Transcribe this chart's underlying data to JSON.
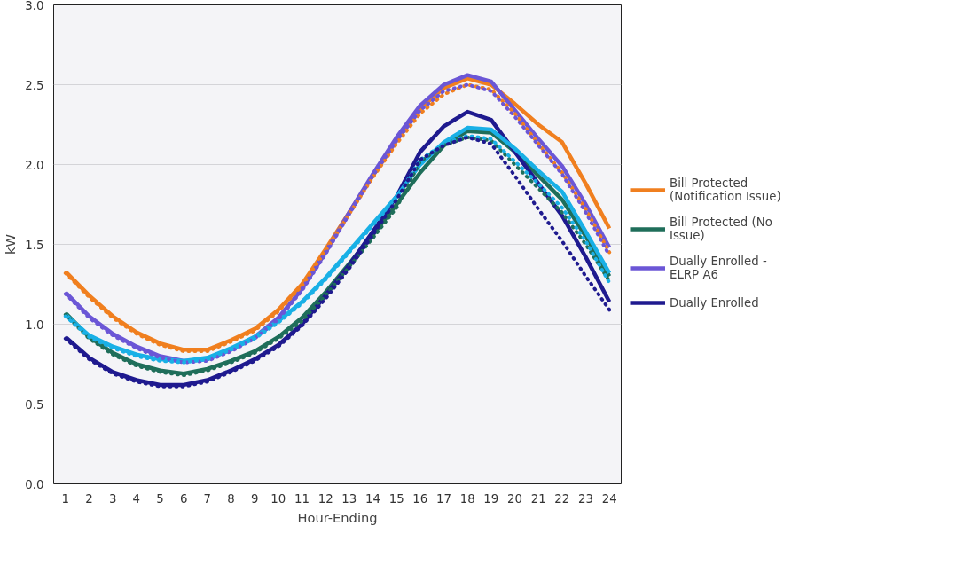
{
  "chart_data": {
    "type": "line",
    "xlabel": "Hour-Ending",
    "ylabel": "kW",
    "x": [
      1,
      2,
      3,
      4,
      5,
      6,
      7,
      8,
      9,
      10,
      11,
      12,
      13,
      14,
      15,
      16,
      17,
      18,
      19,
      20,
      21,
      22,
      23,
      24
    ],
    "xlim": [
      0.5,
      24.5
    ],
    "xticks": [
      1,
      2,
      3,
      4,
      5,
      6,
      7,
      8,
      9,
      10,
      11,
      12,
      13,
      14,
      15,
      16,
      17,
      18,
      19,
      20,
      21,
      22,
      23,
      24
    ],
    "ylim": [
      0,
      3
    ],
    "yticks": [
      {
        "value": 0,
        "label": "0.0"
      },
      {
        "value": 0.5,
        "label": "0.5"
      },
      {
        "value": 1,
        "label": "1.0"
      },
      {
        "value": 1.5,
        "label": "1.5"
      },
      {
        "value": 2,
        "label": "2.0"
      },
      {
        "value": 2.5,
        "label": "2.5"
      },
      {
        "value": 3,
        "label": "3.0"
      }
    ],
    "grid": "y",
    "legend": "right",
    "marker": "none",
    "series": [
      {
        "name": "Bill Protected (Notification Issue)",
        "color": "#f07f1f",
        "line_style": "solid",
        "values": [
          1.33,
          1.18,
          1.05,
          0.95,
          0.88,
          0.84,
          0.84,
          0.9,
          0.97,
          1.09,
          1.25,
          1.47,
          1.7,
          1.93,
          2.15,
          2.35,
          2.48,
          2.54,
          2.5,
          2.38,
          2.25,
          2.14,
          1.88,
          1.6
        ]
      },
      {
        "name": "Bill Protected (No Issue)",
        "color": "#1f6e5a",
        "line_style": "solid",
        "values": [
          1.07,
          0.92,
          0.82,
          0.75,
          0.71,
          0.69,
          0.72,
          0.77,
          0.83,
          0.92,
          1.04,
          1.2,
          1.38,
          1.56,
          1.75,
          1.95,
          2.12,
          2.21,
          2.2,
          2.08,
          1.93,
          1.78,
          1.55,
          1.3
        ]
      },
      {
        "name": "Dually Enrolled - ELRP A6",
        "color": "#6b56d6",
        "line_style": "solid",
        "values": [
          1.2,
          1.05,
          0.94,
          0.86,
          0.8,
          0.77,
          0.78,
          0.84,
          0.92,
          1.04,
          1.22,
          1.45,
          1.7,
          1.94,
          2.17,
          2.37,
          2.5,
          2.56,
          2.52,
          2.34,
          2.16,
          1.99,
          1.75,
          1.48
        ]
      },
      {
        "name": "Dually Enrolled",
        "color": "#1f1a8f",
        "line_style": "solid",
        "values": [
          0.92,
          0.79,
          0.7,
          0.65,
          0.62,
          0.62,
          0.65,
          0.71,
          0.78,
          0.87,
          1.0,
          1.18,
          1.37,
          1.58,
          1.8,
          2.08,
          2.24,
          2.33,
          2.28,
          2.08,
          1.88,
          1.68,
          1.42,
          1.14
        ]
      },
      {
        "color": "#19b0e6",
        "line_style": "solid",
        "values": [
          1.06,
          0.93,
          0.86,
          0.81,
          0.78,
          0.77,
          0.79,
          0.85,
          0.92,
          1.02,
          1.14,
          1.29,
          1.46,
          1.63,
          1.8,
          2.0,
          2.14,
          2.23,
          2.22,
          2.1,
          1.96,
          1.83,
          1.58,
          1.32
        ]
      },
      {
        "color": "#f07f1f",
        "line_style": "dotted",
        "values": [
          1.32,
          1.17,
          1.04,
          0.94,
          0.87,
          0.83,
          0.83,
          0.89,
          0.96,
          1.08,
          1.24,
          1.46,
          1.69,
          1.92,
          2.13,
          2.32,
          2.44,
          2.5,
          2.47,
          2.32,
          2.13,
          1.95,
          1.72,
          1.45
        ]
      },
      {
        "color": "#6b56d6",
        "line_style": "dotted",
        "values": [
          1.19,
          1.04,
          0.93,
          0.85,
          0.79,
          0.76,
          0.77,
          0.83,
          0.91,
          1.03,
          1.21,
          1.44,
          1.69,
          1.93,
          2.15,
          2.34,
          2.46,
          2.5,
          2.46,
          2.3,
          2.12,
          1.94,
          1.7,
          1.43
        ]
      },
      {
        "color": "#1f6e5a",
        "line_style": "dotted",
        "values": [
          1.06,
          0.91,
          0.81,
          0.74,
          0.7,
          0.68,
          0.71,
          0.76,
          0.82,
          0.91,
          1.02,
          1.18,
          1.36,
          1.54,
          1.73,
          2.02,
          2.12,
          2.17,
          2.15,
          2.0,
          1.85,
          1.7,
          1.5,
          1.27
        ]
      },
      {
        "color": "#19b0e6",
        "line_style": "dotted",
        "values": [
          1.05,
          0.92,
          0.85,
          0.8,
          0.77,
          0.76,
          0.78,
          0.84,
          0.91,
          1.01,
          1.13,
          1.28,
          1.45,
          1.62,
          1.79,
          2.03,
          2.13,
          2.18,
          2.16,
          2.02,
          1.88,
          1.73,
          1.52,
          1.26
        ]
      },
      {
        "color": "#1f1a8f",
        "line_style": "dotted",
        "values": [
          0.91,
          0.78,
          0.69,
          0.64,
          0.61,
          0.61,
          0.64,
          0.7,
          0.77,
          0.86,
          0.99,
          1.16,
          1.35,
          1.56,
          1.78,
          2.03,
          2.12,
          2.17,
          2.13,
          1.93,
          1.72,
          1.52,
          1.3,
          1.09
        ]
      }
    ]
  }
}
